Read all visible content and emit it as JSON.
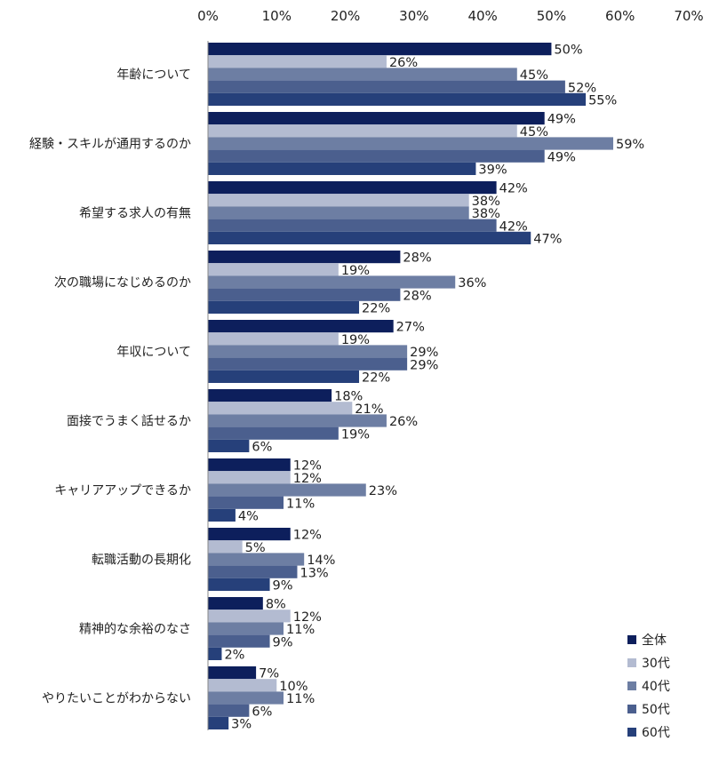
{
  "chart_data": {
    "type": "bar",
    "orientation": "horizontal",
    "categories": [
      "年齢について",
      "経験・スキルが通用するのか",
      "希望する求人の有無",
      "次の職場になじめるのか",
      "年収について",
      "面接でうまく話せるか",
      "キャリアアップできるか",
      "転職活動の長期化",
      "精神的な余裕のなさ",
      "やりたいことがわからない"
    ],
    "series": [
      {
        "name": "全体",
        "color": "#0d1f5c",
        "values": [
          50,
          49,
          42,
          28,
          27,
          18,
          12,
          12,
          8,
          7
        ]
      },
      {
        "name": "30代",
        "color": "#b3bbd1",
        "values": [
          26,
          45,
          38,
          19,
          19,
          21,
          12,
          5,
          12,
          10
        ]
      },
      {
        "name": "40代",
        "color": "#6d7ea3",
        "values": [
          45,
          59,
          38,
          36,
          29,
          26,
          23,
          14,
          11,
          11
        ]
      },
      {
        "name": "50代",
        "color": "#4b5f8e",
        "values": [
          52,
          49,
          42,
          28,
          29,
          19,
          11,
          13,
          9,
          6
        ]
      },
      {
        "name": "60代",
        "color": "#26407a",
        "values": [
          55,
          39,
          47,
          22,
          22,
          6,
          4,
          9,
          2,
          3
        ]
      }
    ],
    "xlim": [
      0,
      70
    ],
    "x_ticks": [
      0,
      10,
      20,
      30,
      40,
      50,
      60,
      70
    ],
    "tick_suffix": "%",
    "value_suffix": "%",
    "legend_position": "bottom-right",
    "grid": false
  }
}
